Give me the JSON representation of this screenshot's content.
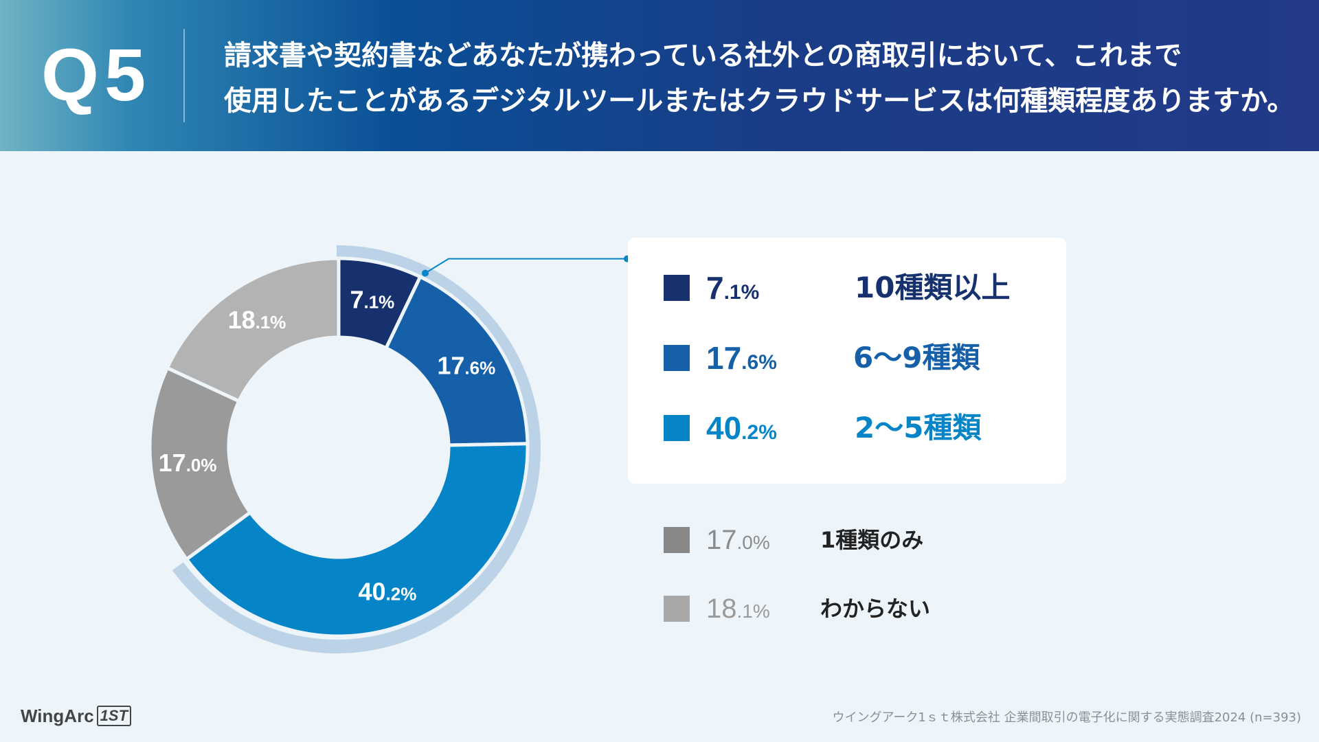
{
  "header": {
    "question_no": "Q5",
    "question_line1": "請求書や契約書などあなたが携わっている社外との商取引において、これまで",
    "question_line2": "使用したことがあるデジタルツールまたはクラウドサービスは何種類程度ありますか。"
  },
  "colors": {
    "tenplus": "#17316f",
    "six_nine": "#1560a8",
    "two_five": "#0585c8",
    "one": "#9a9a9a",
    "unknown": "#b3b3b3",
    "highlight_ring": "#bcd2e6",
    "leader_line": "#0585c8"
  },
  "chart_data": {
    "type": "pie",
    "variant": "donut",
    "title": "",
    "categories": [
      "10種類以上",
      "6〜9種類",
      "2〜5種類",
      "1種類のみ",
      "わからない"
    ],
    "values": [
      7.1,
      17.6,
      40.2,
      17.0,
      18.1
    ],
    "units": "%",
    "start": "top (12 o'clock), clockwise",
    "highlighted_group": [
      "10種類以上",
      "6〜9種類",
      "2〜5種類"
    ],
    "slice_labels": [
      {
        "int": "7",
        "dec": ".1%"
      },
      {
        "int": "17",
        "dec": ".6%"
      },
      {
        "int": "40",
        "dec": ".2%"
      },
      {
        "int": "17",
        "dec": ".0%"
      },
      {
        "int": "18",
        "dec": ".1%"
      }
    ]
  },
  "legend": {
    "highlight": [
      {
        "int": "7",
        "dec": ".1%",
        "label": "10種類以上"
      },
      {
        "int": "17",
        "dec": ".6%",
        "label": "6〜9種類"
      },
      {
        "int": "40",
        "dec": ".2%",
        "label": "2〜5種類"
      }
    ],
    "others": [
      {
        "int": "17",
        "dec": ".0%",
        "label": "1種類のみ"
      },
      {
        "int": "18",
        "dec": ".1%",
        "label": "わからない"
      }
    ]
  },
  "footer": {
    "logo_text": "WingArc",
    "logo_mark": "1ST",
    "source": "ウイングアーク1ｓｔ株式会社 企業間取引の電子化に関する実態調査2024 (n=393)"
  }
}
